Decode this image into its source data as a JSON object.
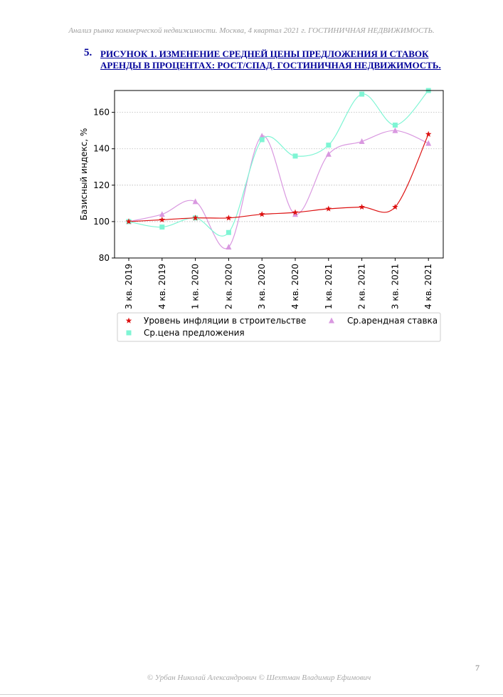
{
  "header": {
    "running_title": "Анализ рынка коммерческой недвижимости.  Москва, 4 квартал 2021 г.   ГОСТИНИЧНАЯ НЕДВИЖИМОСТЬ."
  },
  "section": {
    "number": "5.",
    "title_line1": "РИСУНОК 1. ИЗМЕНЕНИЕ СРЕДНЕЙ ЦЕНЫ ПРЕДЛОЖЕНИЯ И СТАВОК",
    "title_line2": "АРЕНДЫ В ПРОЦЕНТАХ: РОСТ/СПАД. ГОСТИНИЧНАЯ НЕДВИЖИМОСТЬ."
  },
  "chart_data": {
    "type": "line",
    "ylabel": "Базисный индекс, %",
    "xlabel": "",
    "ylim": [
      80,
      172
    ],
    "yticks": [
      80,
      100,
      120,
      140,
      160
    ],
    "grid": "horizontal dotted",
    "legend_position": "below",
    "categories": [
      "3 кв. 2019",
      "4 кв. 2019",
      "1 кв. 2020",
      "2 кв. 2020",
      "3 кв. 2020",
      "4 кв. 2020",
      "1 кв. 2021",
      "2 кв. 2021",
      "3 кв. 2021",
      "4 кв. 2021"
    ],
    "series": [
      {
        "name": "Уровень инфляции в строительстве",
        "color": "#dd1111",
        "marker": "star",
        "values": [
          100,
          101,
          102,
          102,
          104,
          105,
          107,
          108,
          108,
          148
        ]
      },
      {
        "name": "Ср.цена предложения",
        "color": "#7ff5d4",
        "marker": "square",
        "values": [
          100,
          97,
          102,
          94,
          145,
          136,
          142,
          170,
          153,
          172
        ]
      },
      {
        "name": "Ср.арендная ставка",
        "color": "#d998e0",
        "marker": "triangle",
        "values": [
          100,
          104,
          111,
          86,
          147,
          104,
          137,
          144,
          150,
          143
        ]
      }
    ]
  },
  "page_number": "7",
  "footer": {
    "copyright": "© Урбан Николай Александрович   © Шехтман Владимир Ефимович"
  }
}
